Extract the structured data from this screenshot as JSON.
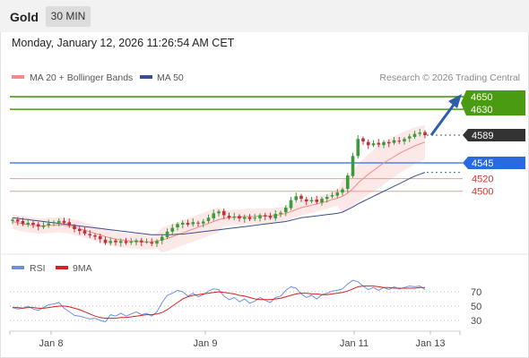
{
  "header": {
    "instrument": "Gold",
    "timeframe": "30 MIN",
    "datetime": "Monday, January 12, 2026 11:26:54 AM CET"
  },
  "legend": {
    "bollinger_label": "MA 20 + Bollinger Bands",
    "ma50_label": "MA 50",
    "copyright": "Research © 2026 Trading Central"
  },
  "rsi_legend": {
    "rsi_label": "RSI",
    "ma_label": "9MA"
  },
  "colors": {
    "bull_candle": "#3c9a3c",
    "bear_candle": "#c0303c",
    "target_line": "#4a9a12",
    "pivot_line": "#2a6ae0",
    "support_line": "#f19a9a",
    "support_text": "#e03030",
    "ma20_line": "#f28a8a",
    "band_fill": "#fde4e4",
    "ma50_line": "#3a4f8f",
    "rsi_line": "#6e8fe0",
    "rsi_ma_line": "#d42020",
    "arrow": "#2c5fa8",
    "price_tag": "#333333"
  },
  "chart_data": {
    "type": "candlestick",
    "price_levels": [
      {
        "label": "4650",
        "value": 4650,
        "kind": "target"
      },
      {
        "label": "4630",
        "value": 4630,
        "kind": "target"
      },
      {
        "label": "4589",
        "value": 4589,
        "kind": "last_price"
      },
      {
        "label": "4545",
        "value": 4545,
        "kind": "pivot"
      },
      {
        "label": "4520",
        "value": 4520,
        "kind": "support"
      },
      {
        "label": "4500",
        "value": 4500,
        "kind": "support"
      }
    ],
    "x_ticks": [
      "Jan 8",
      "Jan 9",
      "Jan 11",
      "Jan 13"
    ],
    "rsi_levels": [
      70,
      50,
      30
    ],
    "candle_closes": [
      4455,
      4452,
      4448,
      4450,
      4447,
      4444,
      4446,
      4449,
      4451,
      4453,
      4450,
      4446,
      4440,
      4437,
      4433,
      4430,
      4428,
      4424,
      4418,
      4421,
      4419,
      4421,
      4418,
      4420,
      4422,
      4419,
      4420,
      4417,
      4421,
      4428,
      4436,
      4442,
      4448,
      4450,
      4447,
      4451,
      4449,
      4452,
      4458,
      4465,
      4468,
      4462,
      4458,
      4460,
      4457,
      4459,
      4456,
      4458,
      4462,
      4460,
      4458,
      4464,
      4466,
      4474,
      4486,
      4492,
      4488,
      4484,
      4486,
      4483,
      4488,
      4491,
      4494,
      4498,
      4503,
      4525,
      4556,
      4583,
      4579,
      4573,
      4576,
      4574,
      4578,
      4576,
      4581,
      4579,
      4583,
      4587,
      4591,
      4593,
      4589
    ],
    "ma20": [
      4452,
      4450,
      4448,
      4447,
      4446,
      4445,
      4445,
      4446,
      4446,
      4447,
      4446,
      4445,
      4443,
      4441,
      4438,
      4436,
      4433,
      4431,
      4428,
      4426,
      4424,
      4423,
      4422,
      4421,
      4421,
      4420,
      4420,
      4420,
      4421,
      4423,
      4425,
      4428,
      4431,
      4434,
      4437,
      4440,
      4443,
      4446,
      4449,
      4452,
      4455,
      4457,
      4458,
      4459,
      4459,
      4460,
      4460,
      4460,
      4461,
      4461,
      4461,
      4462,
      4463,
      4465,
      4468,
      4471,
      4474,
      4476,
      4478,
      4480,
      4482,
      4484,
      4487,
      4489,
      4492,
      4497,
      4504,
      4513,
      4520,
      4527,
      4533,
      4539,
      4545,
      4550,
      4555,
      4560,
      4564,
      4568,
      4572,
      4575,
      4578
    ],
    "ma50": [
      4458,
      4457,
      4456,
      4455,
      4454,
      4453,
      4452,
      4451,
      4450,
      4449,
      4448,
      4447,
      4446,
      4445,
      4444,
      4443,
      4442,
      4441,
      4440,
      4439,
      4438,
      4437,
      4436,
      4435,
      4434,
      4433,
      4432,
      4431,
      4431,
      4431,
      4431,
      4431,
      4432,
      4432,
      4433,
      4434,
      4435,
      4436,
      4437,
      4438,
      4439,
      4440,
      4441,
      4442,
      4443,
      4444,
      4445,
      4446,
      4447,
      4448,
      4449,
      4450,
      4451,
      4452,
      4454,
      4456,
      4458,
      4459,
      4460,
      4461,
      4462,
      4463,
      4464,
      4465,
      4467,
      4471,
      4475,
      4480,
      4484,
      4488,
      4492,
      4496,
      4500,
      4504,
      4508,
      4512,
      4516,
      4520,
      4524,
      4527,
      4530
    ],
    "rsi": [
      48,
      46,
      47,
      50,
      46,
      44,
      48,
      52,
      53,
      55,
      47,
      42,
      37,
      36,
      34,
      32,
      33,
      30,
      28,
      38,
      36,
      40,
      36,
      39,
      42,
      38,
      40,
      36,
      42,
      55,
      65,
      68,
      72,
      70,
      64,
      68,
      63,
      66,
      71,
      74,
      73,
      64,
      59,
      62,
      56,
      60,
      54,
      57,
      62,
      58,
      55,
      62,
      64,
      72,
      77,
      75,
      67,
      62,
      65,
      60,
      66,
      68,
      71,
      72,
      74,
      81,
      86,
      84,
      78,
      73,
      76,
      72,
      76,
      73,
      77,
      74,
      76,
      78,
      77,
      78,
      73
    ],
    "rsi_ma": [
      48,
      48,
      47,
      48,
      48,
      47,
      47,
      48,
      49,
      50,
      50,
      49,
      47,
      45,
      42,
      39,
      36,
      34,
      33,
      33,
      33,
      34,
      34,
      35,
      36,
      37,
      38,
      38,
      39,
      41,
      45,
      50,
      55,
      60,
      63,
      65,
      66,
      67,
      68,
      69,
      70,
      69,
      68,
      67,
      65,
      64,
      62,
      60,
      59,
      59,
      59,
      60,
      61,
      63,
      65,
      67,
      68,
      68,
      67,
      67,
      66,
      66,
      67,
      68,
      69,
      71,
      74,
      77,
      78,
      78,
      78,
      77,
      76,
      76,
      75,
      75,
      75,
      75,
      75,
      76,
      76
    ]
  }
}
